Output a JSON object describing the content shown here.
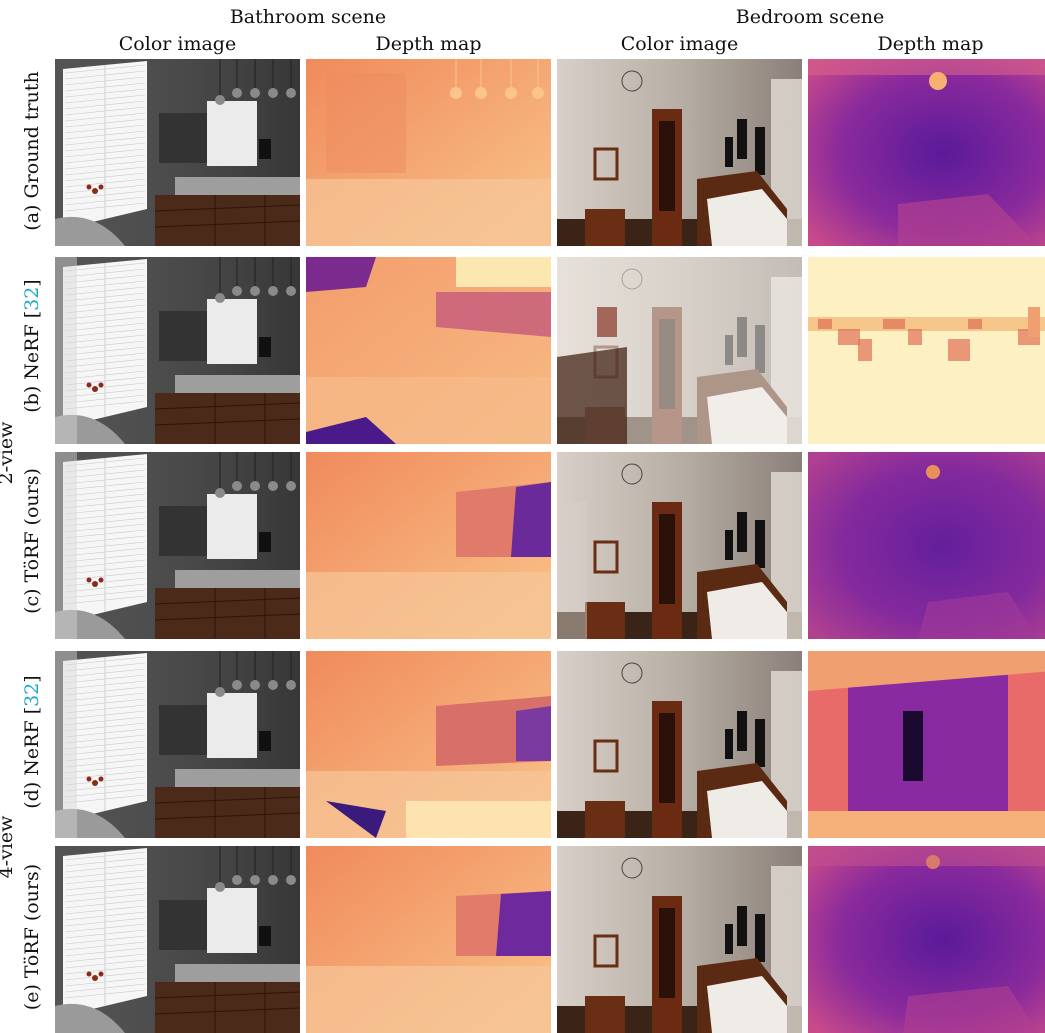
{
  "figure": {
    "scenes": [
      "Bathroom scene",
      "Bedroom scene"
    ],
    "columns": [
      "Color image",
      "Depth map",
      "Color image",
      "Depth map"
    ],
    "groups": [
      "2-view",
      "4-view"
    ],
    "rows": [
      {
        "label": "(a) Ground truth",
        "cite": ""
      },
      {
        "label": "(b) NeRF [",
        "cite": "32",
        "close": "]"
      },
      {
        "label": "(c) TöRF (ours)",
        "cite": ""
      },
      {
        "label": "(d) NeRF [",
        "cite": "32",
        "close": "]"
      },
      {
        "label": "(e) TöRF (ours)",
        "cite": ""
      }
    ]
  }
}
